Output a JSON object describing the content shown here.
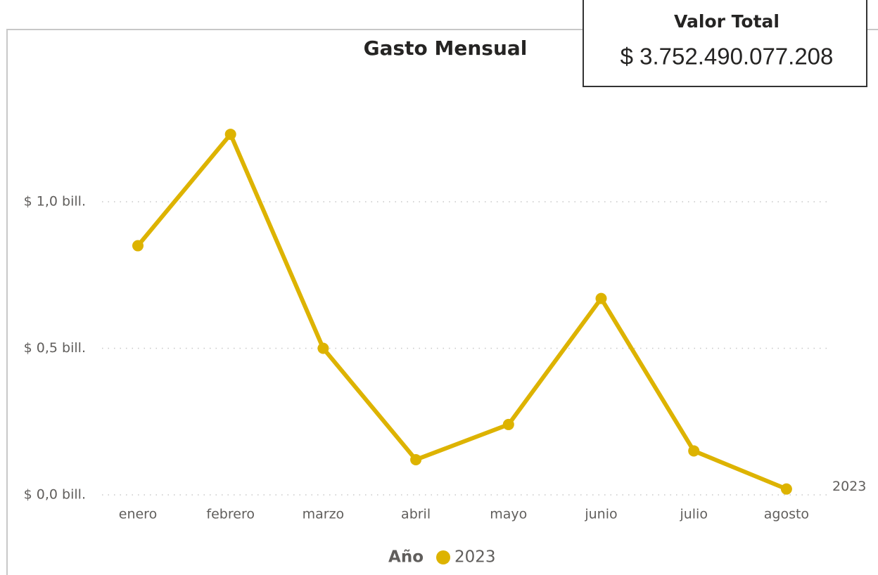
{
  "chart_data": {
    "type": "line",
    "title": "Gasto Mensual",
    "categories": [
      "enero",
      "febrero",
      "marzo",
      "abril",
      "mayo",
      "junio",
      "julio",
      "agosto"
    ],
    "series": [
      {
        "name": "2023",
        "color": "#DDB300",
        "values": [
          0.85,
          1.23,
          0.5,
          0.12,
          0.24,
          0.67,
          0.15,
          0.02
        ]
      }
    ],
    "ylim": [
      0,
      1.3
    ],
    "yticks": [
      {
        "value": 0,
        "label": "$ 0,0 bill."
      },
      {
        "value": 0.5,
        "label": "$ 0,5 bill."
      },
      {
        "value": 1,
        "label": "$ 1,0 bill."
      }
    ],
    "grid": true,
    "legend_title": "Año",
    "legend_position": "bottom"
  },
  "card": {
    "title": "Valor Total",
    "value": "$ 3.752.490.077.208"
  }
}
